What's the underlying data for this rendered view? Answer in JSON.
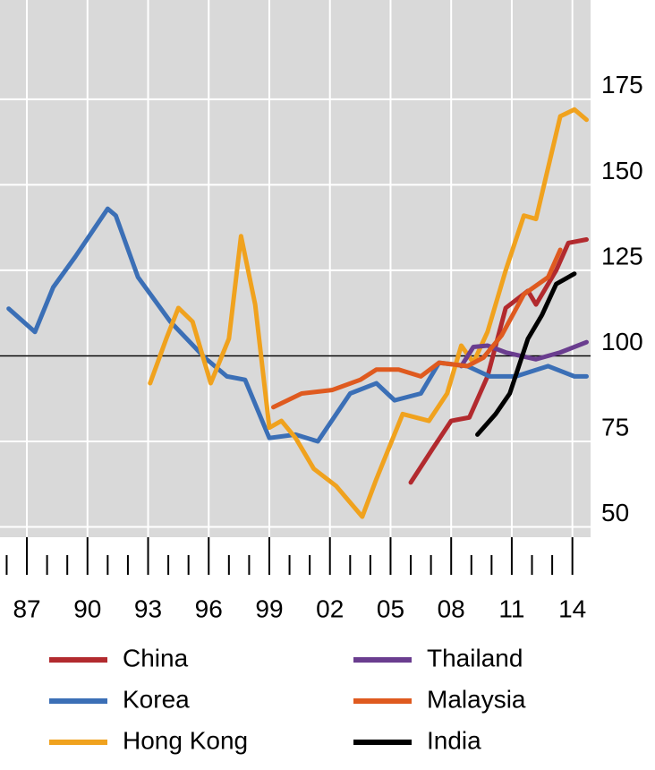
{
  "chart_data": {
    "type": "line",
    "x_range_note_free": null,
    "xlim": [
      1985.67,
      2014.9
    ],
    "ylim": [
      47,
      204
    ],
    "xticks": [
      {
        "value": 1987,
        "label": "87"
      },
      {
        "value": 1990,
        "label": "90"
      },
      {
        "value": 1993,
        "label": "93"
      },
      {
        "value": 1996,
        "label": "96"
      },
      {
        "value": 1999,
        "label": "99"
      },
      {
        "value": 2002,
        "label": "02"
      },
      {
        "value": 2005,
        "label": "05"
      },
      {
        "value": 2008,
        "label": "08"
      },
      {
        "value": 2011,
        "label": "11"
      },
      {
        "value": 2014,
        "label": "14"
      }
    ],
    "xminorticks": [
      1986,
      1988,
      1989,
      1991,
      1992,
      1994,
      1995,
      1997,
      1998,
      2000,
      2001,
      2003,
      2004,
      2006,
      2007,
      2009,
      2010,
      2012,
      2013
    ],
    "yticks": [
      50,
      75,
      100,
      125,
      150,
      175
    ],
    "reference_line": 100,
    "grid": true,
    "series": [
      {
        "name": "China",
        "color": "#b22a2e",
        "x": [
          2006,
          2007.1,
          2008,
          2008.9,
          2009.8,
          2010.7,
          2011.8,
          2012.2,
          2013.2,
          2013.8,
          2014.7
        ],
        "values": [
          63,
          73,
          81,
          82,
          94,
          114,
          119,
          115,
          125,
          133,
          134
        ]
      },
      {
        "name": "Korea",
        "color": "#3b6fb6",
        "x": [
          1986.1,
          1987.4,
          1988.3,
          1989.4,
          1991,
          1991.4,
          1992.5,
          1994.1,
          1995.8,
          1996.9,
          1997.8,
          1999,
          2000.3,
          2001.4,
          2003,
          2004.3,
          2005.2,
          2006.5,
          2007.4,
          2008.8,
          2009.9,
          2011.2,
          2012.8,
          2014.1,
          2014.7
        ],
        "values": [
          113.8,
          107,
          120,
          129,
          143,
          141,
          123,
          110,
          99.5,
          94,
          93,
          76,
          77,
          75,
          89,
          92,
          87,
          89,
          98,
          97,
          94,
          94,
          97,
          94,
          94
        ]
      },
      {
        "name": "Hong Kong",
        "color": "#f0a21e",
        "x": [
          1993.1,
          1993.9,
          1994.5,
          1995.2,
          1996.1,
          1997,
          1997.6,
          1998.3,
          1999,
          1999.6,
          2000.3,
          2001.2,
          2002.3,
          2003.6,
          2004.3,
          2005.6,
          2006.9,
          2007.8,
          2008.5,
          2009.1,
          2009.8,
          2010.7,
          2011.6,
          2012.2,
          2013.4,
          2014.1,
          2014.7
        ],
        "values": [
          92,
          105,
          114,
          110,
          92,
          105,
          135,
          115,
          79,
          81,
          76,
          67,
          62,
          53,
          64,
          83,
          81,
          89,
          103,
          98,
          107,
          125,
          141,
          140,
          170,
          172,
          169
        ]
      },
      {
        "name": "Thailand",
        "color": "#6a3d8f",
        "x": [
          2008.5,
          2009.1,
          2009.8,
          2010.7,
          2012.2,
          2013.4,
          2014.7
        ],
        "values": [
          97,
          102.6,
          103,
          101,
          99,
          101,
          104
        ]
      },
      {
        "name": "Malaysia",
        "color": "#df5a1f",
        "x": [
          1999.2,
          2000.6,
          2002.1,
          2003.5,
          2004.3,
          2005.4,
          2006.5,
          2007.4,
          2008.8,
          2009.6,
          2010.5,
          2011.6,
          2012.8,
          2013.4
        ],
        "values": [
          85,
          89,
          90,
          93,
          96,
          96,
          94,
          98,
          97,
          99.5,
          106,
          118,
          123,
          131
        ]
      },
      {
        "name": "India",
        "color": "#000000",
        "x": [
          2009.3,
          2010.2,
          2010.9,
          2011.8,
          2012.5,
          2013.2,
          2014.1
        ],
        "values": [
          77,
          83,
          89,
          105,
          112,
          121,
          124
        ]
      }
    ]
  }
}
